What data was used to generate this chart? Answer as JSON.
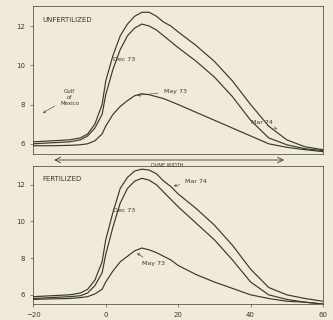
{
  "bg_color": "#f0ead8",
  "line_color": "#3a3a2a",
  "xlim": [
    -20,
    60
  ],
  "ylim": [
    5.5,
    13.0
  ],
  "yticks": [
    6,
    8,
    10,
    12
  ],
  "xticks": [
    -20,
    0,
    20,
    40,
    60
  ],
  "unfert_label": "UNFERTILIZED",
  "fert_label": "FERTILIZED",
  "top_mar74_x": [
    -20,
    -15,
    -10,
    -7,
    -5,
    -3,
    -1,
    0,
    2,
    4,
    6,
    8,
    10,
    12,
    14,
    16,
    18,
    20,
    25,
    30,
    35,
    40,
    45,
    50,
    55,
    60
  ],
  "top_mar74_y": [
    6.1,
    6.15,
    6.2,
    6.3,
    6.5,
    7.0,
    8.0,
    9.2,
    10.5,
    11.5,
    12.1,
    12.5,
    12.7,
    12.7,
    12.5,
    12.2,
    12.0,
    11.7,
    11.0,
    10.2,
    9.2,
    8.0,
    6.9,
    6.2,
    5.85,
    5.7
  ],
  "top_dec73_x": [
    -20,
    -15,
    -10,
    -7,
    -5,
    -3,
    -1,
    0,
    2,
    4,
    6,
    8,
    10,
    12,
    14,
    16,
    18,
    20,
    25,
    30,
    35,
    40,
    45,
    50,
    55,
    60
  ],
  "top_dec73_y": [
    6.0,
    6.05,
    6.1,
    6.2,
    6.4,
    6.8,
    7.5,
    8.5,
    9.8,
    10.8,
    11.5,
    11.9,
    12.1,
    12.0,
    11.8,
    11.5,
    11.2,
    10.9,
    10.2,
    9.4,
    8.4,
    7.2,
    6.3,
    5.95,
    5.75,
    5.65
  ],
  "top_may73_x": [
    -20,
    -15,
    -10,
    -7,
    -5,
    -3,
    -1,
    0,
    2,
    4,
    6,
    8,
    10,
    12,
    14,
    16,
    18,
    20,
    25,
    30,
    35,
    40,
    45,
    50,
    55,
    60
  ],
  "top_may73_y": [
    5.9,
    5.9,
    5.92,
    5.95,
    6.0,
    6.15,
    6.5,
    6.9,
    7.5,
    7.9,
    8.2,
    8.45,
    8.55,
    8.5,
    8.4,
    8.3,
    8.15,
    8.0,
    7.6,
    7.2,
    6.8,
    6.4,
    6.0,
    5.82,
    5.7,
    5.6
  ],
  "bot_mar74_x": [
    -20,
    -15,
    -10,
    -7,
    -5,
    -3,
    -1,
    0,
    2,
    4,
    6,
    8,
    10,
    12,
    14,
    16,
    18,
    20,
    25,
    30,
    35,
    40,
    45,
    50,
    55,
    60
  ],
  "bot_mar74_y": [
    5.9,
    5.95,
    6.0,
    6.1,
    6.3,
    6.8,
    7.8,
    9.0,
    10.5,
    11.8,
    12.4,
    12.75,
    12.85,
    12.8,
    12.6,
    12.2,
    11.9,
    11.5,
    10.7,
    9.8,
    8.7,
    7.4,
    6.4,
    6.0,
    5.8,
    5.65
  ],
  "bot_dec73_x": [
    -20,
    -15,
    -10,
    -7,
    -5,
    -3,
    -1,
    0,
    2,
    4,
    6,
    8,
    10,
    12,
    14,
    16,
    18,
    20,
    25,
    30,
    35,
    40,
    45,
    50,
    55,
    60
  ],
  "bot_dec73_y": [
    5.8,
    5.85,
    5.9,
    5.95,
    6.1,
    6.5,
    7.2,
    8.2,
    9.7,
    11.0,
    11.8,
    12.2,
    12.35,
    12.25,
    12.0,
    11.6,
    11.2,
    10.8,
    9.9,
    9.0,
    7.9,
    6.7,
    6.0,
    5.75,
    5.6,
    5.5
  ],
  "bot_may73_x": [
    -20,
    -15,
    -10,
    -7,
    -5,
    -3,
    -1,
    0,
    2,
    4,
    6,
    8,
    10,
    12,
    14,
    16,
    18,
    20,
    25,
    30,
    35,
    40,
    45,
    50,
    55,
    60
  ],
  "bot_may73_y": [
    5.75,
    5.78,
    5.8,
    5.85,
    5.9,
    6.05,
    6.3,
    6.7,
    7.3,
    7.8,
    8.1,
    8.4,
    8.55,
    8.45,
    8.3,
    8.1,
    7.9,
    7.6,
    7.1,
    6.7,
    6.35,
    6.0,
    5.8,
    5.65,
    5.6,
    5.5
  ]
}
